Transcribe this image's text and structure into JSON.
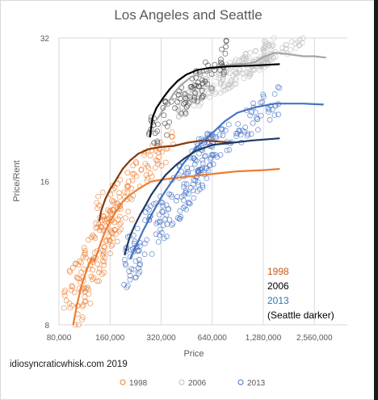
{
  "chart_data": {
    "type": "scatter",
    "title": "Los Angeles and Seattle",
    "xlabel": "Price",
    "ylabel": "Price/Rent",
    "x_scale": "log2",
    "y_scale": "log2",
    "xlim": [
      80000,
      4000000
    ],
    "ylim": [
      8,
      32
    ],
    "x_ticks": [
      80000,
      160000,
      320000,
      640000,
      1280000,
      2560000
    ],
    "x_tick_labels": [
      "80,000",
      "160,000",
      "320,000",
      "640,000",
      "1,280,000",
      "2,560,000"
    ],
    "y_ticks": [
      8,
      16,
      32
    ],
    "y_tick_labels": [
      "8",
      "16",
      "32"
    ],
    "grid": "vertical",
    "legend_position": "bottom",
    "legend": [
      {
        "label": "1998",
        "color": "#ed7d31"
      },
      {
        "label": "2006",
        "color": "#bfbfbf"
      },
      {
        "label": "2013",
        "color": "#4472c4"
      }
    ],
    "annotations": [
      {
        "text": "1998",
        "color": "#c55a11"
      },
      {
        "text": "2006",
        "color": "#000000"
      },
      {
        "text": "2013",
        "color": "#2e75b6"
      },
      {
        "text": "(Seattle darker)",
        "color": "#000000"
      }
    ],
    "credit": "idiosyncraticwhisk.com 2019",
    "lines": [
      {
        "series": "1998",
        "city": "Los Angeles",
        "color": "#ed7d31",
        "points": [
          [
            97000,
            8.0
          ],
          [
            102000,
            8.8
          ],
          [
            108000,
            9.6
          ],
          [
            114000,
            10.2
          ],
          [
            120000,
            10.7
          ],
          [
            124000,
            11.0
          ],
          [
            130000,
            10.9
          ],
          [
            140000,
            11.8
          ],
          [
            150000,
            12.6
          ],
          [
            160000,
            13.2
          ],
          [
            175000,
            13.9
          ],
          [
            190000,
            14.5
          ],
          [
            210000,
            15.0
          ],
          [
            240000,
            15.5
          ],
          [
            280000,
            16.0
          ],
          [
            350000,
            16.2
          ],
          [
            480000,
            16.4
          ],
          [
            650000,
            16.6
          ],
          [
            900000,
            16.8
          ],
          [
            1300000,
            16.9
          ],
          [
            1600000,
            17.0
          ]
        ]
      },
      {
        "series": "1998",
        "city": "Seattle",
        "color": "#843c0c",
        "points": [
          [
            138000,
            13.2
          ],
          [
            142000,
            13.9
          ],
          [
            150000,
            14.7
          ],
          [
            160000,
            15.4
          ],
          [
            175000,
            16.2
          ],
          [
            190000,
            17.0
          ],
          [
            210000,
            17.7
          ],
          [
            235000,
            18.3
          ],
          [
            270000,
            18.7
          ],
          [
            320000,
            18.9
          ],
          [
            380000,
            19.0
          ],
          [
            460000,
            19.3
          ],
          [
            560000,
            19.5
          ],
          [
            700000,
            19.4
          ],
          [
            850000,
            19.3
          ]
        ]
      },
      {
        "series": "2006",
        "city": "Los Angeles",
        "color": "#a6a6a6",
        "points": [
          [
            300000,
            21.5
          ],
          [
            340000,
            23.0
          ],
          [
            380000,
            24.5
          ],
          [
            420000,
            25.5
          ],
          [
            480000,
            26.5
          ],
          [
            560000,
            27.0
          ],
          [
            640000,
            27.5
          ],
          [
            760000,
            28.0
          ],
          [
            900000,
            28.2
          ],
          [
            1050000,
            28.3
          ],
          [
            1150000,
            28.5
          ],
          [
            1280000,
            29.2
          ],
          [
            1500000,
            29.8
          ],
          [
            1800000,
            29.6
          ],
          [
            2200000,
            29.3
          ],
          [
            2560000,
            29.3
          ],
          [
            3000000,
            29.1
          ]
        ]
      },
      {
        "series": "2006",
        "city": "Seattle",
        "color": "#000000",
        "points": [
          [
            275000,
            19.8
          ],
          [
            278000,
            20.5
          ],
          [
            285000,
            21.8
          ],
          [
            300000,
            22.8
          ],
          [
            330000,
            24.0
          ],
          [
            360000,
            25.0
          ],
          [
            400000,
            26.0
          ],
          [
            450000,
            26.8
          ],
          [
            520000,
            27.4
          ],
          [
            620000,
            27.7
          ],
          [
            800000,
            27.9
          ],
          [
            1100000,
            28.0
          ],
          [
            1600000,
            28.2
          ]
        ]
      },
      {
        "series": "2013",
        "city": "Los Angeles",
        "color": "#4472c4",
        "points": [
          [
            210000,
            11.0
          ],
          [
            230000,
            11.8
          ],
          [
            250000,
            12.6
          ],
          [
            280000,
            13.6
          ],
          [
            320000,
            14.8
          ],
          [
            370000,
            16.0
          ],
          [
            430000,
            17.4
          ],
          [
            520000,
            18.9
          ],
          [
            640000,
            20.2
          ],
          [
            760000,
            21.4
          ],
          [
            900000,
            22.3
          ],
          [
            1150000,
            22.9
          ],
          [
            1500000,
            23.3
          ],
          [
            2200000,
            23.3
          ],
          [
            2900000,
            23.2
          ]
        ]
      },
      {
        "series": "2013",
        "city": "Seattle",
        "color": "#1f3864",
        "points": [
          [
            195000,
            11.2
          ],
          [
            200000,
            11.6
          ],
          [
            210000,
            12.3
          ],
          [
            225000,
            13.0
          ],
          [
            240000,
            13.6
          ],
          [
            260000,
            14.3
          ],
          [
            280000,
            15.0
          ],
          [
            310000,
            15.8
          ],
          [
            340000,
            16.5
          ],
          [
            390000,
            17.3
          ],
          [
            440000,
            17.9
          ],
          [
            520000,
            18.6
          ],
          [
            650000,
            19.1
          ],
          [
            850000,
            19.3
          ],
          [
            1100000,
            19.5
          ],
          [
            1600000,
            19.7
          ]
        ]
      }
    ],
    "scatter_clusters": [
      {
        "series": "1998",
        "color": "#ed7d31",
        "regions": [
          {
            "x_range": [
              85000,
              220000
            ],
            "y_range": [
              9.0,
              15.0
            ],
            "count": 120
          },
          {
            "x_range": [
              130000,
              380000
            ],
            "y_range": [
              13.5,
              19.5
            ],
            "count": 80
          },
          {
            "x_range": [
              97000,
              150000
            ],
            "y_range": [
              8.0,
              11.0
            ],
            "count": 30
          }
        ]
      },
      {
        "series": "2006",
        "color": "#bfbfbf",
        "regions": [
          {
            "x_range": [
              400000,
              1500000
            ],
            "y_range": [
              23.0,
              30.5
            ],
            "count": 180
          },
          {
            "x_range": [
              1100000,
              2200000
            ],
            "y_range": [
              28.0,
              31.5
            ],
            "count": 40
          }
        ]
      },
      {
        "series": "2006",
        "color": "#404040",
        "regions": [
          {
            "x_range": [
              270000,
              800000
            ],
            "y_range": [
              20.0,
              29.5
            ],
            "count": 90
          }
        ]
      },
      {
        "series": "2013",
        "color": "#4472c4",
        "regions": [
          {
            "x_range": [
              190000,
              650000
            ],
            "y_range": [
              10.5,
              19.0
            ],
            "count": 170
          },
          {
            "x_range": [
              450000,
              1600000
            ],
            "y_range": [
              17.0,
              24.0
            ],
            "count": 90
          }
        ]
      }
    ]
  }
}
